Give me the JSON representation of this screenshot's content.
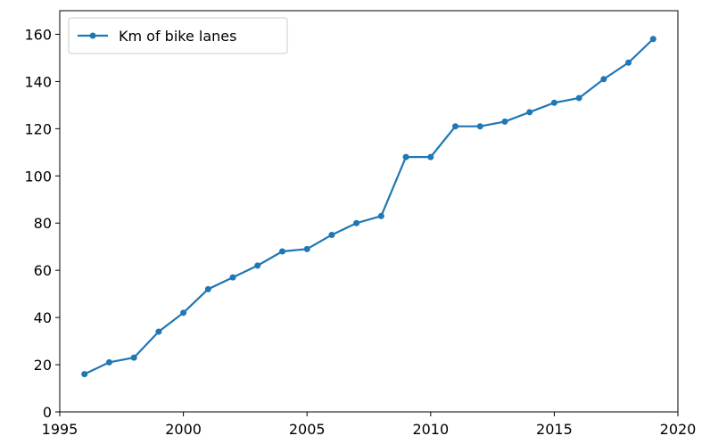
{
  "chart_data": {
    "type": "line",
    "x": [
      1996,
      1997,
      1998,
      1999,
      2000,
      2001,
      2002,
      2003,
      2004,
      2005,
      2006,
      2007,
      2008,
      2009,
      2010,
      2011,
      2012,
      2013,
      2014,
      2015,
      2016,
      2017,
      2018,
      2019
    ],
    "series": [
      {
        "name": "Km of bike lanes",
        "color": "#1f77b4",
        "values": [
          16,
          21,
          23,
          34,
          42,
          52,
          57,
          62,
          68,
          69,
          75,
          80,
          83,
          108,
          108,
          121,
          121,
          123,
          127,
          131,
          133,
          141,
          148,
          158
        ]
      }
    ],
    "xlim": [
      1995,
      2020
    ],
    "xticks": [
      1995,
      2000,
      2005,
      2010,
      2015,
      2020
    ],
    "ylim": [
      0,
      170
    ],
    "yticks": [
      0,
      20,
      40,
      60,
      80,
      100,
      120,
      140,
      160
    ],
    "legend": "upper left",
    "grid": false
  }
}
